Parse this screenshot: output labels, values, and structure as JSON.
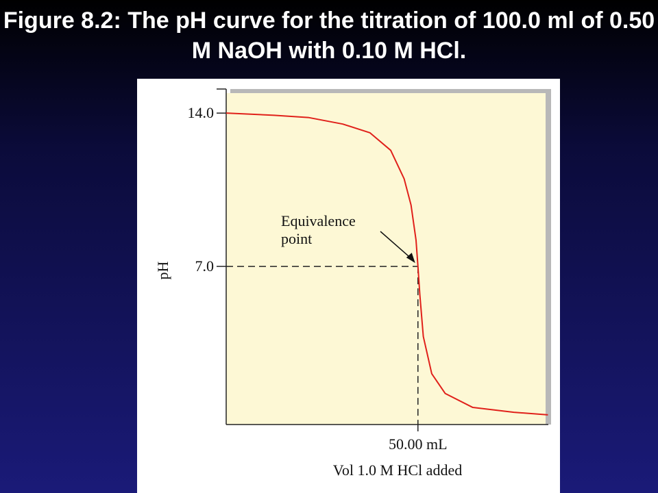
{
  "chart_data": {
    "type": "line",
    "title": "Figure 8.2:  The pH curve for the titration of 100.0 ml of 0.50 M NaOH with 0.10 M HCl.",
    "x_label": "Vol 1.0 M HCl added",
    "y_label": "pH",
    "x": [
      0,
      12.5,
      21.4,
      30.4,
      37.5,
      42.9,
      46.4,
      48.2,
      49.5,
      50,
      50.5,
      51.4,
      53.6,
      57.1,
      64.3,
      75,
      83.9
    ],
    "series": [
      {
        "color": "#e0201a",
        "values": [
          14.0,
          13.9,
          13.8,
          13.5,
          13.1,
          12.3,
          11.0,
          9.8,
          8.2,
          7.0,
          5.7,
          3.8,
          2.1,
          1.2,
          0.56,
          0.34,
          0.22
        ]
      }
    ],
    "xlim": [
      0,
      84
    ],
    "ylim": [
      -0.22,
      15.1
    ],
    "xticks": [
      {
        "value": 50,
        "label": "50.00 mL"
      }
    ],
    "yticks": [
      {
        "value": 7,
        "label": "7.0"
      },
      {
        "value": 14,
        "label": "14.0"
      }
    ],
    "equivalence_point": {
      "x": 50,
      "y": 7,
      "label": [
        "Equivalence",
        "point"
      ]
    }
  }
}
